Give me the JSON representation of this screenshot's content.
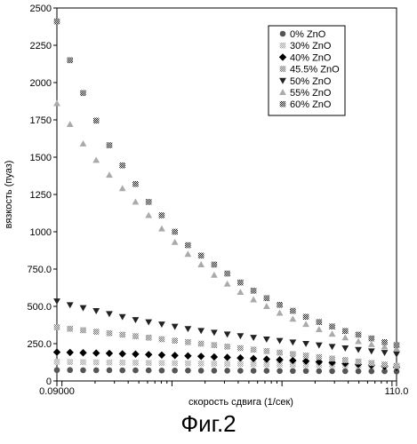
{
  "chart_data": {
    "type": "scatter",
    "xlabel": "скорость сдвига (1/сек)",
    "ylabel": "вязкость (пуаз)",
    "x_tick_labels": [
      "0.09000",
      "110.0"
    ],
    "xlim": [
      0.09,
      110.0
    ],
    "x_scale": "log",
    "ylim": [
      0,
      2500
    ],
    "y_ticks": [
      "0",
      "250.0",
      "500.0",
      "750.0",
      "1000",
      "1250",
      "1500",
      "1750",
      "2000",
      "2250",
      "2500"
    ],
    "y_tick_values": [
      0,
      250,
      500,
      750,
      1000,
      1250,
      1500,
      1750,
      2000,
      2250,
      2500
    ],
    "grid": false,
    "legend_position": "top-right",
    "x": [
      0.09,
      0.1184,
      0.1558,
      0.2049,
      0.2696,
      0.3547,
      0.4667,
      0.614,
      0.8077,
      1.0627,
      1.398,
      1.8393,
      2.4199,
      3.1837,
      4.1886,
      5.5106,
      7.2499,
      9.5383,
      12.549,
      16.5099,
      21.7209,
      28.5767,
      37.5964,
      49.4632,
      65.0754,
      85.6152,
      110.0
    ],
    "series": [
      {
        "name": "0% ZnO",
        "marker": "circle",
        "color": "#555555",
        "values": [
          73,
          73,
          72,
          72,
          72,
          71,
          71,
          71,
          70,
          70,
          70,
          69,
          69,
          69,
          68,
          68,
          68,
          67,
          67,
          67,
          66,
          66,
          66,
          65,
          65,
          65,
          64
        ]
      },
      {
        "name": "30% ZnO",
        "marker": "hatched-square",
        "color": "#888888",
        "values": [
          128,
          127,
          126,
          125,
          124,
          123,
          122,
          121,
          120,
          119,
          118,
          117,
          116,
          115,
          114,
          113,
          112,
          111,
          110,
          109,
          108,
          107,
          106,
          105,
          104,
          103,
          102
        ]
      },
      {
        "name": "40% ZnO",
        "marker": "diamond",
        "color": "#000000",
        "values": [
          193,
          191,
          189,
          187,
          185,
          182,
          180,
          177,
          174,
          171,
          168,
          165,
          161,
          158,
          154,
          150,
          146,
          142,
          137,
          133,
          128,
          123,
          117,
          111,
          105,
          98,
          92
        ]
      },
      {
        "name": "45.5% ZnO",
        "marker": "hatched-square",
        "color": "#555555",
        "values": [
          360,
          350,
          340,
          330,
          320,
          310,
          300,
          290,
          280,
          270,
          260,
          250,
          240,
          230,
          220,
          210,
          200,
          190,
          180,
          170,
          160,
          150,
          140,
          130,
          120,
          110,
          100
        ]
      },
      {
        "name": "50% ZnO",
        "marker": "triangle-down",
        "color": "#222222",
        "values": [
          535,
          510,
          490,
          470,
          450,
          430,
          410,
          395,
          380,
          365,
          350,
          337,
          325,
          313,
          302,
          291,
          280,
          270,
          260,
          250,
          240,
          230,
          220,
          210,
          200,
          190,
          180
        ]
      },
      {
        "name": "55% ZnO",
        "marker": "triangle-up",
        "color": "#aaaaaa",
        "values": [
          1860,
          1720,
          1590,
          1480,
          1380,
          1290,
          1200,
          1110,
          1020,
          930,
          850,
          780,
          710,
          650,
          595,
          545,
          500,
          455,
          415,
          380,
          345,
          315,
          290,
          265,
          245,
          230,
          215
        ]
      },
      {
        "name": "60% ZnO",
        "marker": "hatched-square",
        "color": "#222222",
        "values": [
          2410,
          2150,
          1930,
          1745,
          1580,
          1445,
          1320,
          1200,
          1110,
          1000,
          910,
          840,
          780,
          720,
          660,
          605,
          555,
          510,
          470,
          430,
          395,
          365,
          335,
          310,
          285,
          260,
          240
        ]
      }
    ]
  },
  "figure_caption": "Фиг.2"
}
